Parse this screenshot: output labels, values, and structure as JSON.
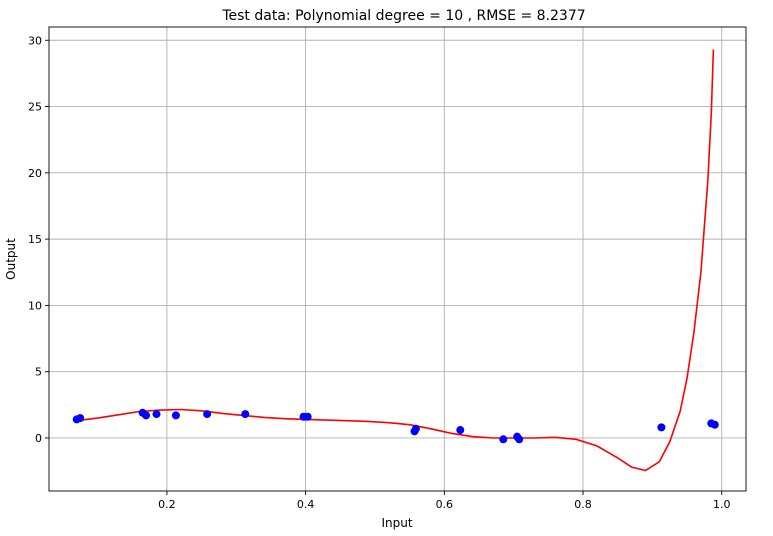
{
  "chart_data": {
    "type": "scatter",
    "title": "Test data: Polynomial degree = 10 , RMSE = 8.2377",
    "xlabel": "Input",
    "ylabel": "Output",
    "xlim": [
      0.03,
      1.035
    ],
    "ylim": [
      -4.0,
      31.0
    ],
    "xticks": [
      0.2,
      0.4,
      0.6,
      0.8,
      1.0
    ],
    "xtick_labels": [
      "0.2",
      "0.4",
      "0.6",
      "0.8",
      "1.0"
    ],
    "yticks": [
      0,
      5,
      10,
      15,
      20,
      25,
      30
    ],
    "ytick_labels": [
      "0",
      "5",
      "10",
      "15",
      "20",
      "25",
      "30"
    ],
    "grid": true,
    "series": [
      {
        "kind": "scatter",
        "color": "#0000ff",
        "x": [
          0.07,
          0.075,
          0.165,
          0.17,
          0.185,
          0.213,
          0.258,
          0.313,
          0.397,
          0.403,
          0.557,
          0.559,
          0.623,
          0.685,
          0.705,
          0.708,
          0.913,
          0.985,
          0.99
        ],
        "y": [
          1.4,
          1.5,
          1.9,
          1.7,
          1.8,
          1.7,
          1.8,
          1.8,
          1.6,
          1.6,
          0.5,
          0.7,
          0.6,
          -0.1,
          0.1,
          -0.1,
          0.8,
          1.1,
          1.0
        ]
      },
      {
        "kind": "line",
        "color": "#ff0000",
        "x": [
          0.07,
          0.1,
          0.13,
          0.16,
          0.19,
          0.22,
          0.25,
          0.28,
          0.31,
          0.34,
          0.37,
          0.4,
          0.43,
          0.46,
          0.49,
          0.52,
          0.55,
          0.58,
          0.61,
          0.64,
          0.67,
          0.7,
          0.73,
          0.76,
          0.79,
          0.82,
          0.85,
          0.87,
          0.89,
          0.91,
          0.925,
          0.94,
          0.95,
          0.96,
          0.97,
          0.975,
          0.98,
          0.985,
          0.988
        ],
        "y": [
          1.3,
          1.5,
          1.75,
          2.0,
          2.1,
          2.15,
          2.05,
          1.85,
          1.7,
          1.55,
          1.45,
          1.4,
          1.35,
          1.3,
          1.25,
          1.15,
          1.0,
          0.7,
          0.35,
          0.1,
          0.0,
          0.0,
          0.0,
          0.05,
          -0.1,
          -0.6,
          -1.5,
          -2.2,
          -2.45,
          -1.8,
          -0.3,
          2.0,
          4.5,
          8.0,
          12.5,
          16.0,
          19.5,
          24.5,
          29.3
        ]
      }
    ]
  }
}
